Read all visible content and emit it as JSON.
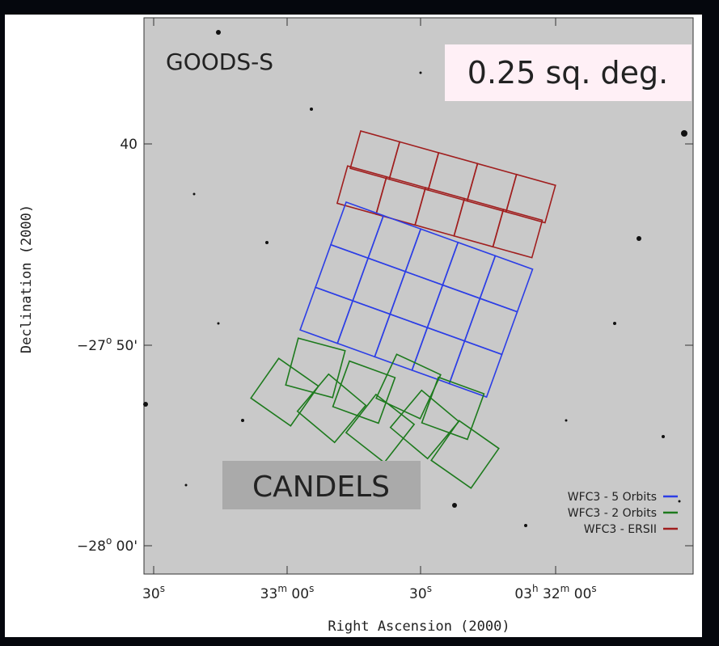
{
  "field_label": "GOODS-S",
  "area_label": "0.25 sq. deg.",
  "survey_label": "CANDELS",
  "y_axis": {
    "title": "Declination (2000)",
    "ticks": [
      [
        "40"
      ],
      [
        "−27",
        "o",
        " 50'"
      ],
      [
        "−28",
        "o",
        " 00'"
      ]
    ]
  },
  "x_axis": {
    "title": "Right Ascension (2000)",
    "ticks": [
      [
        "30",
        "s"
      ],
      [
        "33",
        "m",
        " 00",
        "s"
      ],
      [
        "30",
        "s"
      ],
      [
        "03",
        "h",
        " 32",
        "m",
        " 00",
        "s"
      ]
    ]
  },
  "legend": [
    {
      "label": "WFC3 - 5 Orbits",
      "color": "#2c3ee6"
    },
    {
      "label": "WFC3 - 2 Orbits",
      "color": "#1d7a1d"
    },
    {
      "label": "WFC3 - ERSII",
      "color": "#a01e1e"
    }
  ]
}
